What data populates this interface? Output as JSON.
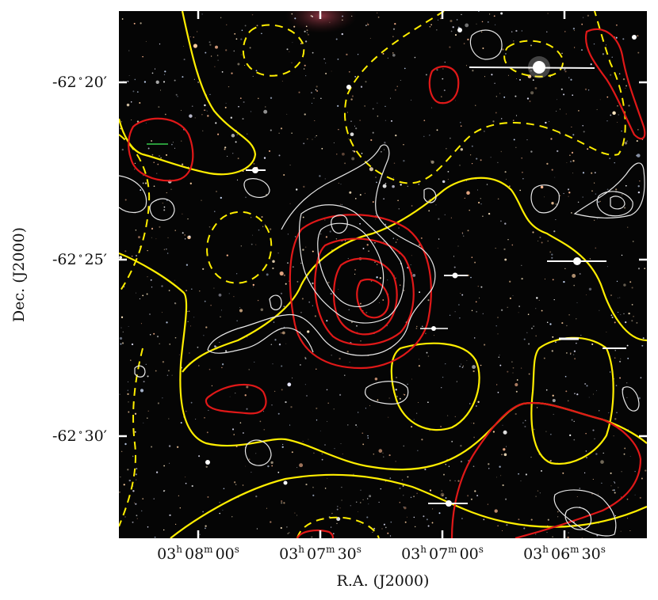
{
  "figure": {
    "x_axis_label": "R.A. (J2000)",
    "y_axis_label": "Dec. (J2000)",
    "x_ticks": [
      {
        "h": "03",
        "m": "08",
        "s": "00"
      },
      {
        "h": "03",
        "m": "07",
        "s": "30"
      },
      {
        "h": "03",
        "m": "07",
        "s": "00"
      },
      {
        "h": "03",
        "m": "06",
        "s": "30"
      }
    ],
    "y_ticks": [
      {
        "deg": "-62",
        "arcmin": "20"
      },
      {
        "deg": "-62",
        "arcmin": "25"
      },
      {
        "deg": "-62",
        "arcmin": "30"
      }
    ],
    "colors": {
      "sky_background": "#050505",
      "contour_yellow": "#ffee00",
      "contour_red": "#e01818",
      "contour_white": "#e8e8e8",
      "axis_ticks": "#ffffff"
    }
  }
}
